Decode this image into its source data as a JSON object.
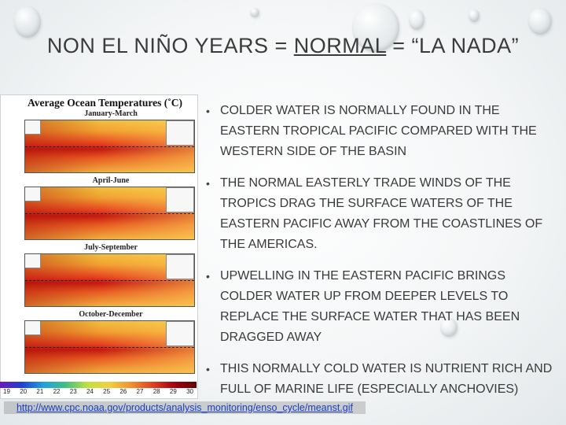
{
  "slide": {
    "title_prefix": "NON EL NIÑO YEARS = ",
    "title_underlined": "NORMAL",
    "title_suffix": " = “LA NADA”"
  },
  "figure": {
    "title": "Average Ocean Temperatures (˚C)",
    "panels": [
      {
        "label": "January-March"
      },
      {
        "label": "April-June"
      },
      {
        "label": "July-September"
      },
      {
        "label": "October-December"
      }
    ],
    "colorbar_ticks": [
      "19",
      "20",
      "21",
      "22",
      "23",
      "24",
      "25",
      "26",
      "27",
      "28",
      "29",
      "30"
    ]
  },
  "bullets": [
    "COLDER WATER IS NORMALLY FOUND IN THE EASTERN TROPICAL PACIFIC COMPARED WITH THE WESTERN SIDE OF THE BASIN",
    "THE NORMAL EASTERLY TRADE WINDS OF THE TROPICS DRAG THE SURFACE WATERS OF THE EASTERN PACIFIC AWAY FROM THE COASTLINES OF THE AMERICAS.",
    "UPWELLING IN THE EASTERN PACIFIC BRINGS COLDER WATER UP FROM DEEPER LEVELS TO REPLACE THE SURFACE WATER THAT HAS BEEN DRAGGED AWAY",
    "THIS NORMALLY COLD WATER IS NUTRIENT RICH AND FULL OF MARINE LIFE (ESPECIALLY ANCHOVIES)"
  ],
  "source_link": "http://www.cpc.noaa.gov/products/analysis_monitoring/enso_cycle/meanst.gif"
}
